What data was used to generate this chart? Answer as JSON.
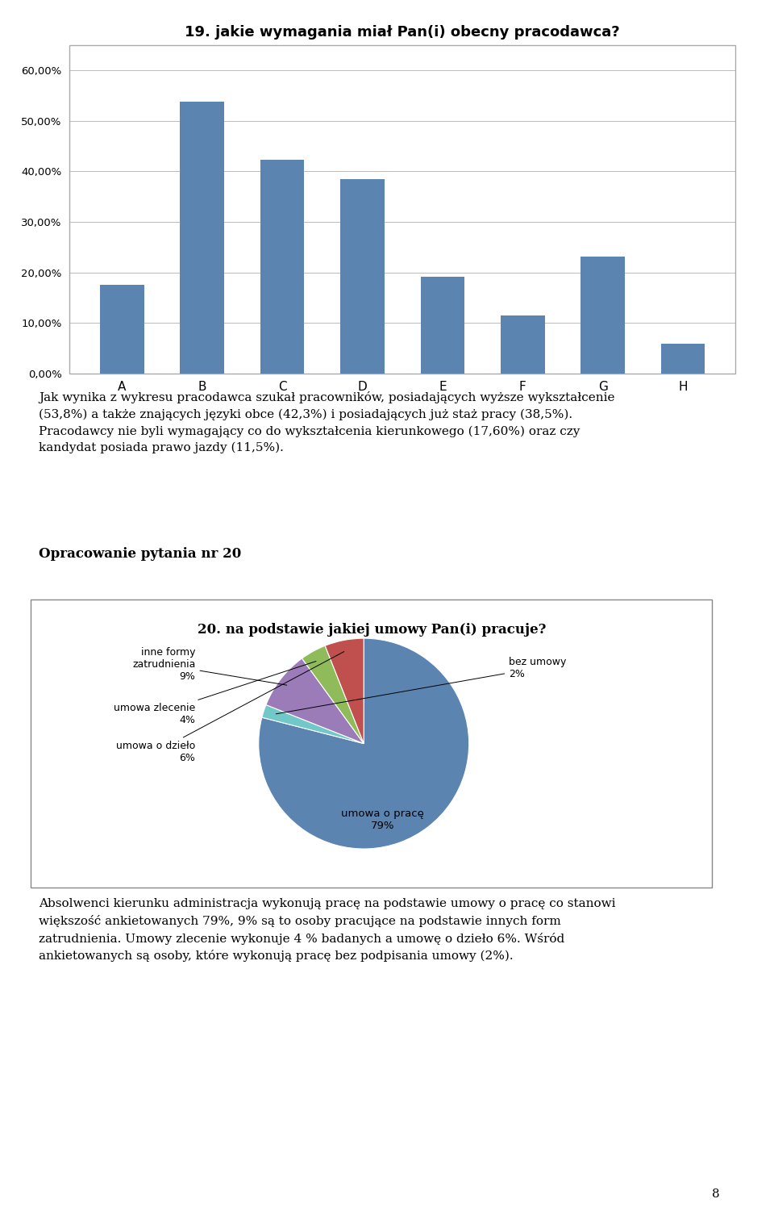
{
  "bar_title": "19. jakie wymagania miał Pan(i) obecny pracodawca?",
  "bar_categories": [
    "A",
    "B",
    "C",
    "D",
    "E",
    "F",
    "G",
    "H"
  ],
  "bar_values": [
    17.6,
    53.8,
    42.3,
    38.5,
    19.2,
    11.5,
    23.1,
    5.8
  ],
  "bar_color": "#5B84B1",
  "bar_ylim": [
    0,
    65
  ],
  "bar_yticks": [
    0,
    10,
    20,
    30,
    40,
    50,
    60
  ],
  "bar_ytick_labels": [
    "0,00%",
    "10,00%",
    "20,00%",
    "30,00%",
    "40,00%",
    "50,00%",
    "60,00%"
  ],
  "pie_title": "20. na podstawie jakiej umowy Pan(i) pracuje?",
  "pie_values": [
    79,
    2,
    9,
    4,
    6
  ],
  "pie_colors": [
    "#5B84B1",
    "#70C8C8",
    "#9B7BB8",
    "#8FBB5A",
    "#C0504D"
  ],
  "text_paragraph1_lines": [
    "Jak wynika z wykresu pracodawca szukał pracowników, posiadających wyższe wykształcenie",
    "(53,8%) a także znających języki obce (42,3%) i posiadających już staż pracy (38,5%).",
    "Pracodawcy nie byli wymagający co do wykształcenia kierunkowego (17,60%) oraz czy",
    "kandydat posiada prawo jazdy (11,5%)."
  ],
  "text_opracowanie": "Opracowanie pytania nr 20",
  "text_paragraph2_lines": [
    "Absolwenci kierunku administracja wykonują pracę na podstawie umowy o pracę co stanowi",
    "większość ankietowanych 79%, 9% są to osoby pracujące na podstawie innych form",
    "zatrudnienia. Umowy zlecenie wykonuje 4 % badanych a umowę o dzieło 6%. Wśród",
    "ankietowanych są osoby, które wykonują pracę bez podpisania umowy (2%)."
  ],
  "page_number": "8",
  "background_color": "#FFFFFF"
}
